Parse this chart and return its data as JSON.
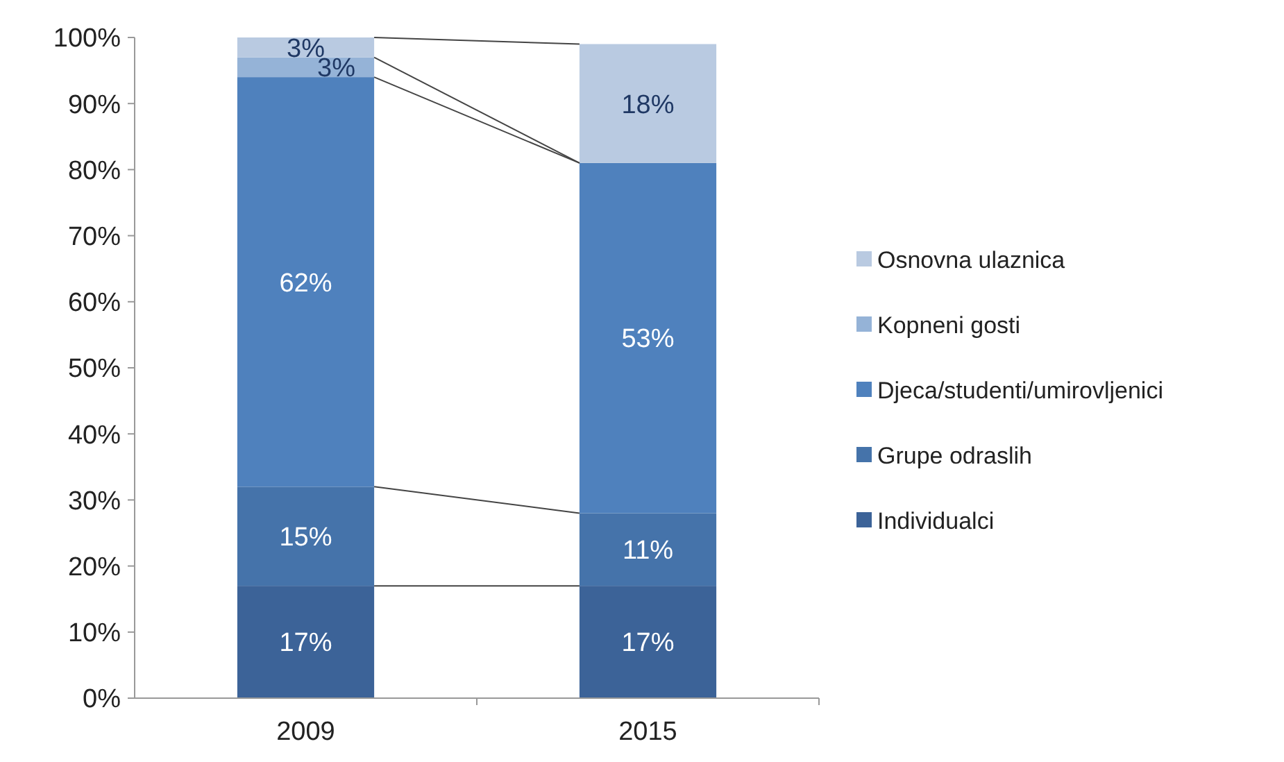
{
  "chart_data": {
    "type": "bar",
    "stacked": true,
    "categories": [
      "2009",
      "2015"
    ],
    "series": [
      {
        "name": "Individualci",
        "color": "#3c6398",
        "values": [
          17,
          17
        ],
        "value_labels": [
          "17%",
          "17%"
        ]
      },
      {
        "name": "Grupe odraslih",
        "color": "#4573aa",
        "values": [
          15,
          11
        ],
        "value_labels": [
          "15%",
          "11%"
        ]
      },
      {
        "name": "Djeca/studenti/umirovljenici",
        "color": "#4f81bd",
        "values": [
          62,
          53
        ],
        "value_labels": [
          "62%",
          "53%"
        ]
      },
      {
        "name": "Kopneni gosti",
        "color": "#95b3d7",
        "values": [
          3,
          0
        ],
        "value_labels": [
          "3%",
          null
        ]
      },
      {
        "name": "Osnovna ulaznica",
        "color": "#b9cae1",
        "values": [
          3,
          18
        ],
        "value_labels": [
          "3%",
          "18%"
        ]
      }
    ],
    "ylim": [
      0,
      100
    ],
    "yticks": [
      {
        "value": 0,
        "label": "0%"
      },
      {
        "value": 10,
        "label": "10%"
      },
      {
        "value": 20,
        "label": "20%"
      },
      {
        "value": 30,
        "label": "30%"
      },
      {
        "value": 40,
        "label": "40%"
      },
      {
        "value": 50,
        "label": "50%"
      },
      {
        "value": 60,
        "label": "60%"
      },
      {
        "value": 70,
        "label": "70%"
      },
      {
        "value": 80,
        "label": "80%"
      },
      {
        "value": 90,
        "label": "90%"
      },
      {
        "value": 100,
        "label": "100%"
      }
    ],
    "grid": false,
    "legend": "right"
  }
}
